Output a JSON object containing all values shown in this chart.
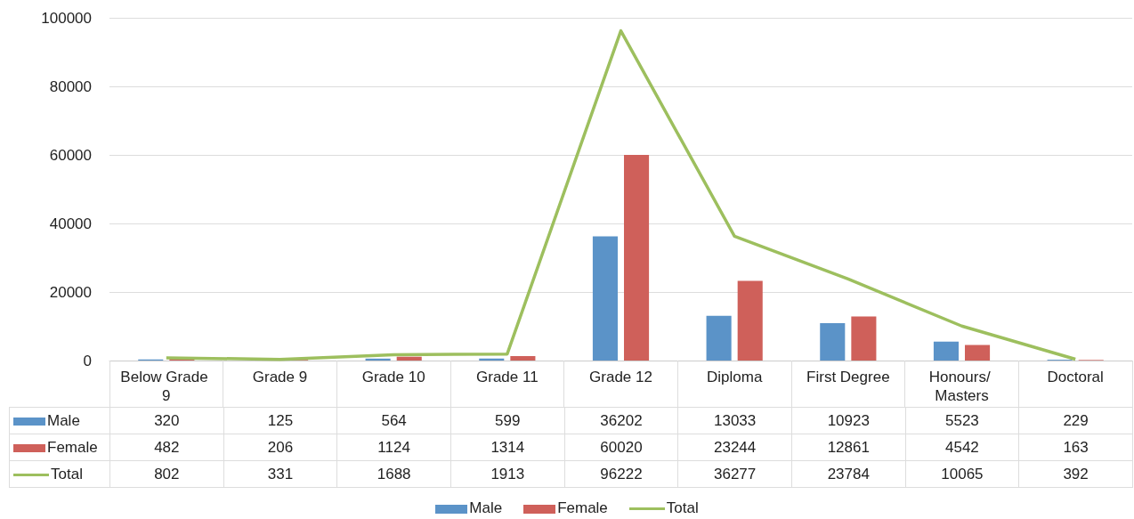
{
  "chart_data": {
    "type": "bar",
    "categories": [
      "Below Grade 9",
      "Grade 9",
      "Grade 10",
      "Grade 11",
      "Grade 12",
      "Diploma",
      "First Degree",
      "Honours/ Masters",
      "Doctoral"
    ],
    "series": [
      {
        "name": "Male",
        "color": "#5b93c8",
        "values": [
          320,
          125,
          564,
          599,
          36202,
          13033,
          10923,
          5523,
          229
        ]
      },
      {
        "name": "Female",
        "color": "#cf605a",
        "values": [
          482,
          206,
          1124,
          1314,
          60020,
          23244,
          12861,
          4542,
          163
        ]
      },
      {
        "name": "Total",
        "type": "line",
        "color": "#9dbf5e",
        "values": [
          802,
          331,
          1688,
          1913,
          96222,
          36277,
          23784,
          10065,
          392
        ]
      }
    ],
    "ylim": [
      0,
      100000
    ],
    "yticks": [
      0,
      20000,
      40000,
      60000,
      80000,
      100000
    ],
    "grid": "y",
    "legend": "bottom",
    "marker": "none",
    "data_labels": true
  }
}
